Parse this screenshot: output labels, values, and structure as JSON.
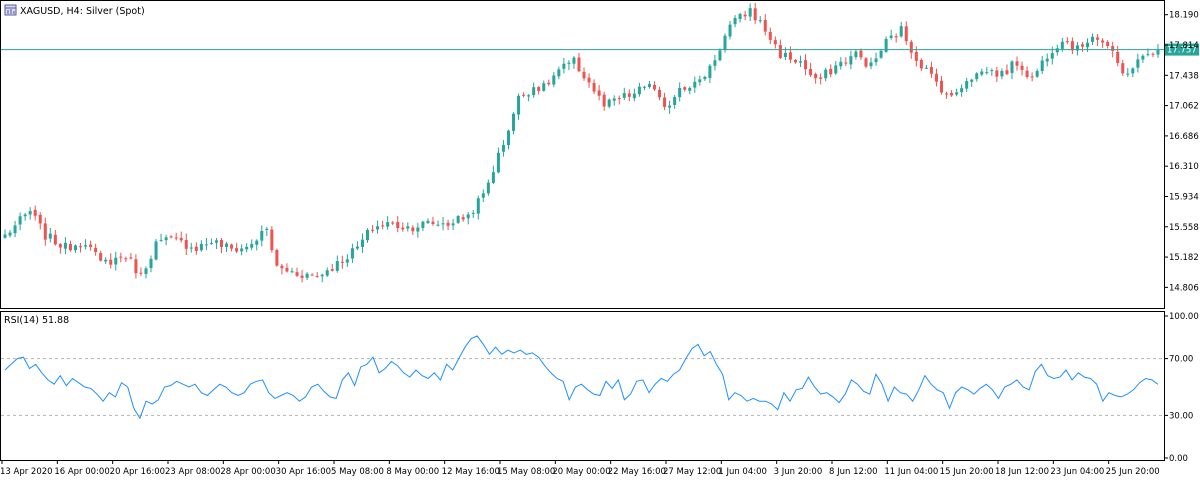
{
  "colors": {
    "bull": "#26a69a",
    "bear": "#ef5350",
    "price_line": "#26a69a",
    "rsi_line": "#1e90ff",
    "text": "#000000",
    "frame": "#000000"
  },
  "chart_data": [
    {
      "type": "candlestick",
      "title": "XAGUSD, H4:  Silver (Spot)",
      "icon": "chart-window-icon",
      "current_price": 17.757,
      "current_price_label": "17.757",
      "ylim": [
        14.55,
        18.36
      ],
      "ytick_labels": [
        "18.190",
        "17.814",
        "17.438",
        "17.062",
        "16.686",
        "16.310",
        "15.934",
        "15.558",
        "15.182",
        "14.806"
      ],
      "yticks": [
        18.19,
        17.814,
        17.438,
        17.062,
        16.686,
        16.31,
        15.934,
        15.558,
        15.182,
        14.806
      ],
      "anchors": [
        {
          "bar": 0,
          "price": 15.45
        },
        {
          "bar": 5,
          "price": 15.75
        },
        {
          "bar": 8,
          "price": 15.45
        },
        {
          "bar": 12,
          "price": 15.3
        },
        {
          "bar": 16,
          "price": 15.38
        },
        {
          "bar": 19,
          "price": 15.1
        },
        {
          "bar": 24,
          "price": 15.2
        },
        {
          "bar": 27,
          "price": 14.95
        },
        {
          "bar": 30,
          "price": 15.35
        },
        {
          "bar": 33,
          "price": 15.4
        },
        {
          "bar": 38,
          "price": 15.3
        },
        {
          "bar": 41,
          "price": 15.38
        },
        {
          "bar": 45,
          "price": 15.28
        },
        {
          "bar": 48,
          "price": 15.3
        },
        {
          "bar": 52,
          "price": 15.52
        },
        {
          "bar": 54,
          "price": 15.05
        },
        {
          "bar": 58,
          "price": 14.98
        },
        {
          "bar": 62,
          "price": 14.95
        },
        {
          "bar": 66,
          "price": 15.1
        },
        {
          "bar": 70,
          "price": 15.3
        },
        {
          "bar": 73,
          "price": 15.55
        },
        {
          "bar": 76,
          "price": 15.6
        },
        {
          "bar": 80,
          "price": 15.55
        },
        {
          "bar": 84,
          "price": 15.6
        },
        {
          "bar": 88,
          "price": 15.6
        },
        {
          "bar": 92,
          "price": 15.7
        },
        {
          "bar": 95,
          "price": 15.95
        },
        {
          "bar": 99,
          "price": 16.6
        },
        {
          "bar": 102,
          "price": 17.15
        },
        {
          "bar": 105,
          "price": 17.3
        },
        {
          "bar": 107,
          "price": 17.28
        },
        {
          "bar": 110,
          "price": 17.5
        },
        {
          "bar": 113,
          "price": 17.6
        },
        {
          "bar": 116,
          "price": 17.35
        },
        {
          "bar": 119,
          "price": 17.05
        },
        {
          "bar": 122,
          "price": 17.15
        },
        {
          "bar": 125,
          "price": 17.2
        },
        {
          "bar": 128,
          "price": 17.35
        },
        {
          "bar": 131,
          "price": 17.0
        },
        {
          "bar": 134,
          "price": 17.3
        },
        {
          "bar": 138,
          "price": 17.35
        },
        {
          "bar": 141,
          "price": 17.65
        },
        {
          "bar": 144,
          "price": 18.05
        },
        {
          "bar": 148,
          "price": 18.25
        },
        {
          "bar": 151,
          "price": 18.0
        },
        {
          "bar": 154,
          "price": 17.7
        },
        {
          "bar": 158,
          "price": 17.6
        },
        {
          "bar": 161,
          "price": 17.35
        },
        {
          "bar": 165,
          "price": 17.55
        },
        {
          "bar": 169,
          "price": 17.7
        },
        {
          "bar": 172,
          "price": 17.55
        },
        {
          "bar": 175,
          "price": 17.85
        },
        {
          "bar": 178,
          "price": 18.0
        },
        {
          "bar": 181,
          "price": 17.65
        },
        {
          "bar": 185,
          "price": 17.35
        },
        {
          "bar": 188,
          "price": 17.15
        },
        {
          "bar": 191,
          "price": 17.4
        },
        {
          "bar": 195,
          "price": 17.5
        },
        {
          "bar": 198,
          "price": 17.45
        },
        {
          "bar": 201,
          "price": 17.6
        },
        {
          "bar": 204,
          "price": 17.4
        },
        {
          "bar": 207,
          "price": 17.7
        },
        {
          "bar": 210,
          "price": 17.9
        },
        {
          "bar": 213,
          "price": 17.75
        },
        {
          "bar": 216,
          "price": 17.95
        },
        {
          "bar": 219,
          "price": 17.8
        },
        {
          "bar": 222,
          "price": 17.45
        },
        {
          "bar": 225,
          "price": 17.6
        },
        {
          "bar": 229,
          "price": 17.8
        }
      ]
    },
    {
      "type": "line",
      "title": "RSI(14) 51.88",
      "ylim": [
        0,
        100
      ],
      "ytick_labels": [
        "100.00",
        "70.00",
        "30.00",
        "0.00"
      ],
      "yticks": [
        100,
        70,
        30,
        0
      ],
      "levels": [
        70,
        30
      ],
      "series": [
        {
          "values": [
            62,
            66,
            70,
            71,
            63,
            66,
            60,
            55,
            52,
            58,
            51,
            56,
            53,
            50,
            49,
            45,
            40,
            46,
            43,
            53,
            50,
            35,
            28,
            40,
            38,
            41,
            50,
            51,
            54,
            52,
            50,
            52,
            46,
            44,
            48,
            52,
            50,
            46,
            44,
            46,
            52,
            54,
            55,
            46,
            42,
            44,
            46,
            44,
            40,
            43,
            50,
            52,
            47,
            43,
            42,
            55,
            60,
            51,
            64,
            66,
            71,
            60,
            63,
            68,
            65,
            60,
            57,
            62,
            58,
            56,
            60,
            55,
            66,
            62,
            70,
            78,
            84,
            86,
            80,
            73,
            78,
            73,
            76,
            74,
            76,
            73,
            74,
            71,
            65,
            60,
            56,
            54,
            41,
            50,
            52,
            48,
            45,
            44,
            54,
            49,
            55,
            41,
            45,
            54,
            55,
            46,
            52,
            56,
            54,
            59,
            62,
            70,
            77,
            80,
            72,
            75,
            66,
            59,
            41,
            46,
            44,
            40,
            42,
            40,
            40,
            38,
            34,
            46,
            40,
            48,
            49,
            57,
            50,
            45,
            46,
            43,
            39,
            45,
            55,
            52,
            47,
            45,
            59,
            52,
            40,
            50,
            46,
            45,
            40,
            48,
            58,
            52,
            48,
            46,
            35,
            46,
            50,
            48,
            45,
            49,
            52,
            48,
            42,
            50,
            52,
            55,
            50,
            48,
            61,
            66,
            58,
            56,
            57,
            62,
            55,
            60,
            57,
            56,
            52,
            40,
            46,
            44,
            43,
            45,
            48,
            53,
            56,
            55,
            51.88
          ]
        }
      ]
    }
  ],
  "x_axis": {
    "labels": [
      "13 Apr 2020",
      "16 Apr 00:00",
      "20 Apr 16:00",
      "23 Apr 08:00",
      "28 Apr 00:00",
      "30 Apr 16:00",
      "5 May 08:00",
      "8 May 00:00",
      "12 May 16:00",
      "15 May 08:00",
      "20 May 00:00",
      "22 May 16:00",
      "27 May 12:00",
      "1 Jun 04:00",
      "3 Jun 20:00",
      "8 Jun 12:00",
      "11 Jun 04:00",
      "15 Jun 20:00",
      "18 Jun 12:00",
      "23 Jun 04:00",
      "25 Jun 20:00"
    ]
  }
}
